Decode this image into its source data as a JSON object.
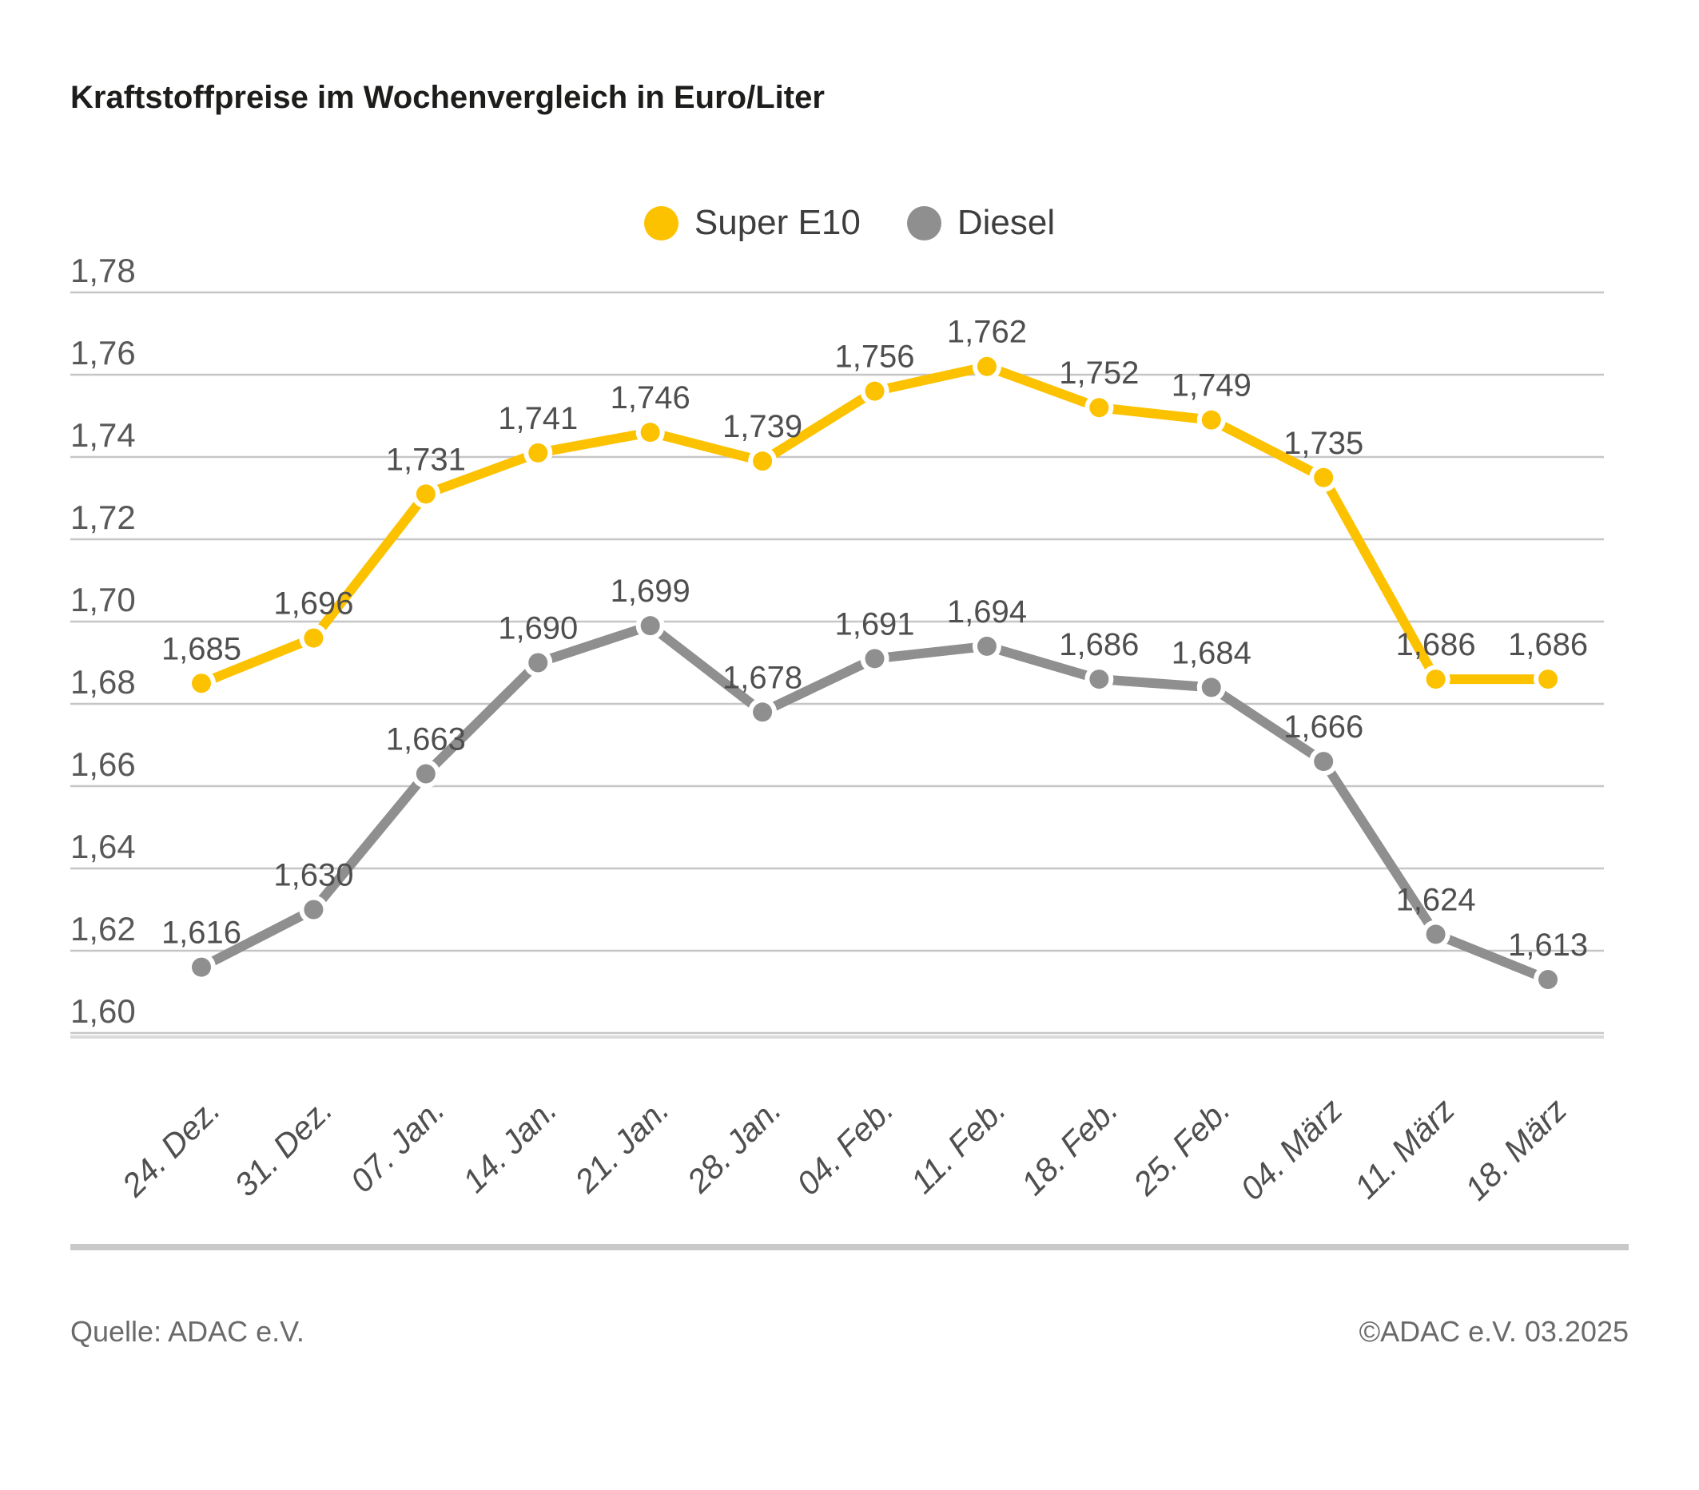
{
  "title": "Kraftstoffpreise im Wochenvergleich in Euro/Liter",
  "colors": {
    "super_e10": "#FCC200",
    "diesel": "#8F8F8F",
    "gridline": "#C6C6C6",
    "axis_band": "#DADADA",
    "tick_label": "#595959",
    "data_label": "#4F4F4F",
    "x_label": "#4F4F4F",
    "title": "#1D1D1B",
    "footer_text": "#6A6A6A",
    "footer_rule": "#C9C9C9"
  },
  "chart_data": {
    "type": "line",
    "categories": [
      "24. Dez.",
      "31. Dez.",
      "07. Jan.",
      "14. Jan.",
      "21. Jan.",
      "28. Jan.",
      "04. Feb.",
      "11. Feb.",
      "18. Feb.",
      "25. Feb.",
      "04. März",
      "11. März",
      "18. März"
    ],
    "series": [
      {
        "name": "Super E10",
        "color": "#FCC200",
        "values": [
          1.685,
          1.696,
          1.731,
          1.741,
          1.746,
          1.739,
          1.756,
          1.762,
          1.752,
          1.749,
          1.735,
          1.686,
          1.686
        ]
      },
      {
        "name": "Diesel",
        "color": "#8F8F8F",
        "values": [
          1.616,
          1.63,
          1.663,
          1.69,
          1.699,
          1.678,
          1.691,
          1.694,
          1.686,
          1.684,
          1.666,
          1.624,
          1.613
        ]
      }
    ],
    "y_ticks": [
      "1,78",
      "1,76",
      "1,74",
      "1,72",
      "1,70",
      "1,68",
      "1,66",
      "1,64",
      "1,62",
      "1,60"
    ],
    "ylim": [
      1.6,
      1.78
    ],
    "grid": true,
    "legend_position": "top",
    "decimal_separator": ","
  },
  "footer": {
    "source": "Quelle: ADAC e.V.",
    "copyright": "©ADAC e.V. 03.2025"
  }
}
